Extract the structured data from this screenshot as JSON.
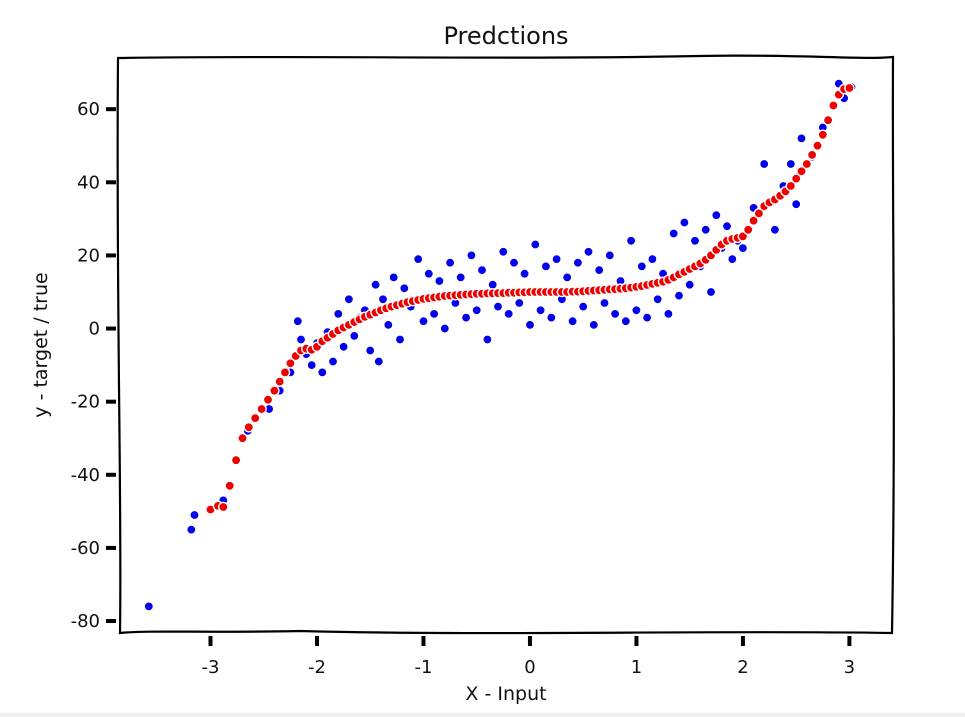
{
  "chart_data": {
    "type": "scatter",
    "title": "Predctions",
    "xlabel": "X - Input",
    "ylabel": "y - target / true",
    "xlim": [
      -3.85,
      3.4
    ],
    "ylim": [
      -83,
      74
    ],
    "xticks": [
      -3,
      -2,
      -1,
      0,
      1,
      2,
      3
    ],
    "yticks": [
      -80,
      -60,
      -40,
      -20,
      0,
      20,
      40,
      60
    ],
    "xtick_labels": [
      "-3",
      "-2",
      "-1",
      "0",
      "1",
      "2",
      "3"
    ],
    "ytick_labels": [
      "-80",
      "-60",
      "-40",
      "-20",
      "0",
      "20",
      "40",
      "60"
    ],
    "grid": false,
    "legend": "none",
    "series": [
      {
        "color": "#0000ee",
        "marker": "circle",
        "points": [
          [
            -3.58,
            -76
          ],
          [
            -3.18,
            -55
          ],
          [
            -3.15,
            -51
          ],
          [
            -2.88,
            -47
          ],
          [
            -2.75,
            -36
          ],
          [
            -2.65,
            -28
          ],
          [
            -2.45,
            -22
          ],
          [
            -2.35,
            -17
          ],
          [
            -2.25,
            -12
          ],
          [
            -2.18,
            2
          ],
          [
            -2.15,
            -3
          ],
          [
            -2.1,
            -7
          ],
          [
            -2.05,
            -10
          ],
          [
            -2.0,
            -4
          ],
          [
            -1.95,
            -12
          ],
          [
            -1.9,
            -1
          ],
          [
            -1.85,
            -9
          ],
          [
            -1.8,
            4
          ],
          [
            -1.75,
            -5
          ],
          [
            -1.7,
            8
          ],
          [
            -1.65,
            -2
          ],
          [
            -1.6,
            3
          ],
          [
            -1.55,
            5
          ],
          [
            -1.5,
            -6
          ],
          [
            -1.45,
            12
          ],
          [
            -1.42,
            -9
          ],
          [
            -1.38,
            8
          ],
          [
            -1.33,
            1
          ],
          [
            -1.28,
            14
          ],
          [
            -1.22,
            -3
          ],
          [
            -1.18,
            11
          ],
          [
            -1.12,
            6
          ],
          [
            -1.05,
            19
          ],
          [
            -1.0,
            2
          ],
          [
            -0.95,
            15
          ],
          [
            -0.9,
            4
          ],
          [
            -0.85,
            13
          ],
          [
            -0.8,
            0
          ],
          [
            -0.75,
            18
          ],
          [
            -0.7,
            7
          ],
          [
            -0.65,
            14
          ],
          [
            -0.6,
            3
          ],
          [
            -0.55,
            20
          ],
          [
            -0.5,
            5
          ],
          [
            -0.45,
            16
          ],
          [
            -0.4,
            -3
          ],
          [
            -0.35,
            12
          ],
          [
            -0.3,
            6
          ],
          [
            -0.25,
            21
          ],
          [
            -0.2,
            4
          ],
          [
            -0.15,
            18
          ],
          [
            -0.1,
            7
          ],
          [
            -0.05,
            15
          ],
          [
            0.0,
            1
          ],
          [
            0.05,
            23
          ],
          [
            0.1,
            5
          ],
          [
            0.15,
            17
          ],
          [
            0.2,
            3
          ],
          [
            0.25,
            19
          ],
          [
            0.3,
            8
          ],
          [
            0.35,
            14
          ],
          [
            0.4,
            2
          ],
          [
            0.45,
            18
          ],
          [
            0.5,
            6
          ],
          [
            0.55,
            21
          ],
          [
            0.6,
            1
          ],
          [
            0.65,
            16
          ],
          [
            0.7,
            7
          ],
          [
            0.75,
            20
          ],
          [
            0.8,
            4
          ],
          [
            0.85,
            13
          ],
          [
            0.9,
            2
          ],
          [
            0.95,
            24
          ],
          [
            1.0,
            5
          ],
          [
            1.05,
            17
          ],
          [
            1.1,
            3
          ],
          [
            1.15,
            19
          ],
          [
            1.2,
            8
          ],
          [
            1.25,
            15
          ],
          [
            1.3,
            4
          ],
          [
            1.35,
            26
          ],
          [
            1.4,
            9
          ],
          [
            1.45,
            29
          ],
          [
            1.5,
            12
          ],
          [
            1.55,
            24
          ],
          [
            1.6,
            17
          ],
          [
            1.65,
            27
          ],
          [
            1.7,
            10
          ],
          [
            1.75,
            31
          ],
          [
            1.8,
            22
          ],
          [
            1.85,
            28
          ],
          [
            1.9,
            19
          ],
          [
            1.95,
            24
          ],
          [
            2.0,
            22
          ],
          [
            2.05,
            27
          ],
          [
            2.1,
            33
          ],
          [
            2.2,
            45
          ],
          [
            2.3,
            27
          ],
          [
            2.38,
            39
          ],
          [
            2.45,
            45
          ],
          [
            2.5,
            34
          ],
          [
            2.55,
            52
          ],
          [
            2.65,
            47
          ],
          [
            2.75,
            55
          ],
          [
            2.9,
            67
          ],
          [
            2.95,
            63
          ],
          [
            3.02,
            66
          ]
        ]
      },
      {
        "color": "#ee0000",
        "marker": "circle",
        "points": [
          [
            -3.0,
            -49.5
          ],
          [
            -2.93,
            -48.5
          ],
          [
            -2.88,
            -48.8
          ],
          [
            -2.82,
            -43
          ],
          [
            -2.76,
            -36
          ],
          [
            -2.7,
            -30
          ],
          [
            -2.64,
            -27
          ],
          [
            -2.58,
            -24.5
          ],
          [
            -2.52,
            -22
          ],
          [
            -2.46,
            -19.5
          ],
          [
            -2.4,
            -17
          ],
          [
            -2.35,
            -14.5
          ],
          [
            -2.3,
            -12
          ],
          [
            -2.25,
            -9.5
          ],
          [
            -2.2,
            -7.5
          ],
          [
            -2.15,
            -6
          ],
          [
            -2.1,
            -5.5
          ],
          [
            -2.05,
            -5.8
          ],
          [
            -2.0,
            -5.0
          ],
          [
            -1.95,
            -3.5
          ],
          [
            -1.9,
            -2.5
          ],
          [
            -1.85,
            -1.5
          ],
          [
            -1.8,
            -0.5
          ],
          [
            -1.75,
            0.3
          ],
          [
            -1.7,
            1.0
          ],
          [
            -1.65,
            1.8
          ],
          [
            -1.6,
            2.5
          ],
          [
            -1.55,
            3.2
          ],
          [
            -1.5,
            3.8
          ],
          [
            -1.45,
            4.4
          ],
          [
            -1.4,
            5.0
          ],
          [
            -1.35,
            5.5
          ],
          [
            -1.3,
            6.0
          ],
          [
            -1.25,
            6.4
          ],
          [
            -1.2,
            6.8
          ],
          [
            -1.15,
            7.2
          ],
          [
            -1.1,
            7.5
          ],
          [
            -1.05,
            7.8
          ],
          [
            -1.0,
            8.1
          ],
          [
            -0.95,
            8.3
          ],
          [
            -0.9,
            8.5
          ],
          [
            -0.85,
            8.7
          ],
          [
            -0.8,
            8.9
          ],
          [
            -0.75,
            9.0
          ],
          [
            -0.7,
            9.1
          ],
          [
            -0.65,
            9.2
          ],
          [
            -0.6,
            9.3
          ],
          [
            -0.55,
            9.4
          ],
          [
            -0.5,
            9.5
          ],
          [
            -0.45,
            9.5
          ],
          [
            -0.4,
            9.6
          ],
          [
            -0.35,
            9.6
          ],
          [
            -0.3,
            9.7
          ],
          [
            -0.25,
            9.7
          ],
          [
            -0.2,
            9.8
          ],
          [
            -0.15,
            9.8
          ],
          [
            -0.1,
            9.9
          ],
          [
            -0.05,
            9.9
          ],
          [
            0.0,
            10.0
          ],
          [
            0.05,
            10.0
          ],
          [
            0.1,
            10.0
          ],
          [
            0.15,
            10.0
          ],
          [
            0.2,
            10.0
          ],
          [
            0.25,
            10.0
          ],
          [
            0.3,
            10.0
          ],
          [
            0.35,
            10.0
          ],
          [
            0.4,
            10.1
          ],
          [
            0.45,
            10.1
          ],
          [
            0.5,
            10.2
          ],
          [
            0.55,
            10.3
          ],
          [
            0.6,
            10.4
          ],
          [
            0.65,
            10.5
          ],
          [
            0.7,
            10.6
          ],
          [
            0.75,
            10.7
          ],
          [
            0.8,
            10.8
          ],
          [
            0.85,
            10.9
          ],
          [
            0.9,
            11.0
          ],
          [
            0.95,
            11.2
          ],
          [
            1.0,
            11.4
          ],
          [
            1.05,
            11.6
          ],
          [
            1.1,
            11.9
          ],
          [
            1.15,
            12.2
          ],
          [
            1.2,
            12.5
          ],
          [
            1.25,
            12.8
          ],
          [
            1.3,
            13.3
          ],
          [
            1.35,
            14.0
          ],
          [
            1.4,
            14.8
          ],
          [
            1.45,
            15.5
          ],
          [
            1.5,
            16.3
          ],
          [
            1.55,
            17.0
          ],
          [
            1.6,
            17.8
          ],
          [
            1.65,
            18.8
          ],
          [
            1.7,
            20.0
          ],
          [
            1.75,
            21.5
          ],
          [
            1.8,
            23.0
          ],
          [
            1.85,
            24.0
          ],
          [
            1.9,
            24.5
          ],
          [
            1.95,
            24.8
          ],
          [
            2.0,
            25.2
          ],
          [
            2.05,
            27.0
          ],
          [
            2.1,
            29.5
          ],
          [
            2.15,
            31.5
          ],
          [
            2.2,
            33.5
          ],
          [
            2.25,
            34.5
          ],
          [
            2.3,
            35.3
          ],
          [
            2.35,
            36.3
          ],
          [
            2.4,
            37.5
          ],
          [
            2.45,
            39.0
          ],
          [
            2.5,
            41.0
          ],
          [
            2.55,
            43.0
          ],
          [
            2.6,
            45.0
          ],
          [
            2.65,
            47.5
          ],
          [
            2.7,
            50.0
          ],
          [
            2.75,
            53.0
          ],
          [
            2.8,
            57.0
          ],
          [
            2.85,
            61.0
          ],
          [
            2.9,
            64.0
          ],
          [
            2.95,
            65.5
          ],
          [
            3.0,
            65.8
          ]
        ]
      }
    ]
  }
}
